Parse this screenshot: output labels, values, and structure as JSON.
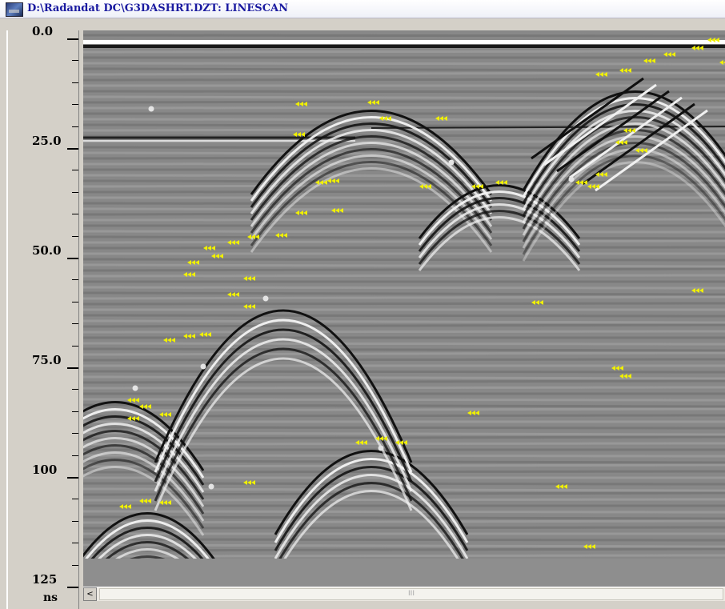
{
  "window": {
    "title": "D:\\Radandat DC\\G3DASHRT.DZT:  LINESCAN"
  },
  "depth_axis": {
    "labels": [
      "0.0",
      "25.0",
      "50.0",
      "75.0",
      "100",
      "125"
    ],
    "unit": "ns"
  },
  "scrollbar": {
    "left_arrow": "<",
    "grip": "III"
  },
  "colors": {
    "window_bg": "#d4d0c8",
    "title_text": "#1a1aa0",
    "scan_gray": "#9a9a9a",
    "pick_marker": "#f0f000",
    "point_marker": "#e0e0e0"
  }
}
